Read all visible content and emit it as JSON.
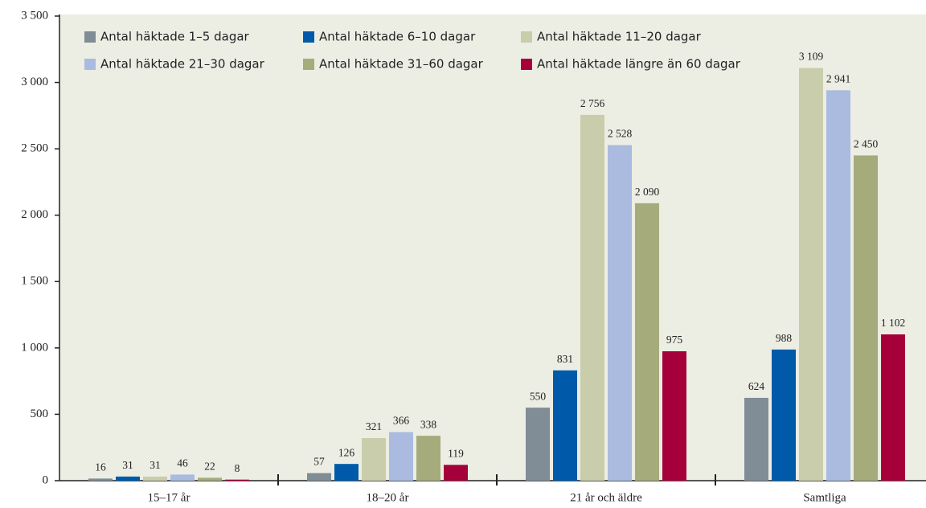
{
  "chart_data": {
    "type": "bar",
    "categories": [
      "15–17 år",
      "18–20 år",
      "21 år och äldre",
      "Samtliga"
    ],
    "series": [
      {
        "name": "Antal häktade 1–5 dagar",
        "color": "#808c96",
        "values": [
          16,
          57,
          550,
          624
        ],
        "value_labels": [
          "16",
          "57",
          "550",
          "624"
        ]
      },
      {
        "name": "Antal häktade 6–10 dagar",
        "color": "#005aa9",
        "values": [
          31,
          126,
          831,
          988
        ],
        "value_labels": [
          "31",
          "126",
          "831",
          "988"
        ]
      },
      {
        "name": "Antal häktade 11–20 dagar",
        "color": "#c9cdab",
        "values": [
          31,
          321,
          2756,
          3109
        ],
        "value_labels": [
          "31",
          "321",
          "2 756",
          "3 109"
        ]
      },
      {
        "name": "Antal häktade 21–30 dagar",
        "color": "#aabbdf",
        "values": [
          46,
          366,
          2528,
          2941
        ],
        "value_labels": [
          "46",
          "366",
          "2 528",
          "2 941"
        ]
      },
      {
        "name": "Antal häktade 31–60 dagar",
        "color": "#a6ab7c",
        "values": [
          22,
          338,
          2090,
          2450
        ],
        "value_labels": [
          "22",
          "338",
          "2 090",
          "2 450"
        ]
      },
      {
        "name": "Antal häktade längre än 60 dagar",
        "color": "#a6003b",
        "values": [
          8,
          119,
          975,
          1102
        ],
        "value_labels": [
          "8",
          "119",
          "975",
          "1 102"
        ]
      }
    ],
    "ylim": [
      0,
      3500
    ],
    "yticks": [
      0,
      500,
      {
        "value": 1000,
        "label": "1 000"
      },
      {
        "value": 1500,
        "label": "1 500"
      },
      {
        "value": 2000,
        "label": "2 000"
      },
      {
        "value": 2500,
        "label": "2 500"
      },
      {
        "value": 3000,
        "label": "3 000"
      },
      {
        "value": 3500,
        "label": "3 500"
      }
    ]
  }
}
